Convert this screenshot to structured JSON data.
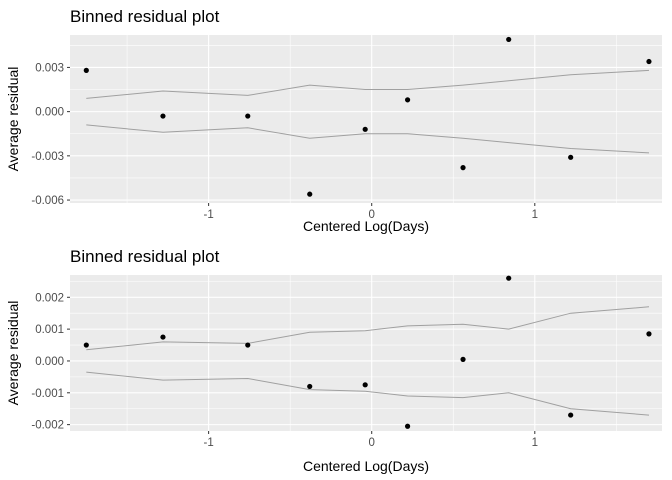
{
  "chart_data": [
    {
      "type": "scatter",
      "title": "Binned residual plot",
      "xlabel": "Centered Log(Days)",
      "ylabel": "Average residual",
      "xlim": [
        -1.85,
        1.78
      ],
      "ylim": [
        -0.0062,
        0.0052
      ],
      "x_ticks": [
        -1,
        0,
        1
      ],
      "x_tick_labels": [
        "-1",
        "0",
        "1"
      ],
      "y_ticks": [
        -0.006,
        -0.003,
        0.0,
        0.003
      ],
      "y_tick_labels": [
        "-0.006",
        "-0.003",
        "0.000",
        "0.003"
      ],
      "grid": true,
      "points": {
        "x": [
          -1.75,
          -1.28,
          -0.76,
          -0.38,
          -0.04,
          0.22,
          0.56,
          0.84,
          1.22,
          1.7
        ],
        "y": [
          0.0028,
          -0.0003,
          -0.0003,
          -0.0056,
          -0.0012,
          0.0008,
          -0.0038,
          0.0049,
          -0.0031,
          0.0034
        ]
      },
      "series": [
        {
          "role": "upper-band",
          "x": [
            -1.75,
            -1.28,
            -0.76,
            -0.38,
            -0.04,
            0.22,
            0.56,
            0.84,
            1.22,
            1.7
          ],
          "y": [
            0.0009,
            0.0014,
            0.0011,
            0.0018,
            0.0015,
            0.0015,
            0.0018,
            0.0021,
            0.0025,
            0.0028
          ]
        },
        {
          "role": "lower-band",
          "x": [
            -1.75,
            -1.28,
            -0.76,
            -0.38,
            -0.04,
            0.22,
            0.56,
            0.84,
            1.22,
            1.7
          ],
          "y": [
            -0.0009,
            -0.0014,
            -0.0011,
            -0.0018,
            -0.0015,
            -0.0015,
            -0.0018,
            -0.0021,
            -0.0025,
            -0.0028
          ]
        }
      ]
    },
    {
      "type": "scatter",
      "title": "Binned residual plot",
      "xlabel": "Centered Log(Days)",
      "ylabel": "Average residual",
      "xlim": [
        -1.85,
        1.78
      ],
      "ylim": [
        -0.0022,
        0.0027
      ],
      "x_ticks": [
        -1,
        0,
        1
      ],
      "x_tick_labels": [
        "-1",
        "0",
        "1"
      ],
      "y_ticks": [
        -0.002,
        -0.001,
        0.0,
        0.001,
        0.002
      ],
      "y_tick_labels": [
        "-0.002",
        "-0.001",
        "0.000",
        "0.001",
        "0.002"
      ],
      "grid": true,
      "points": {
        "x": [
          -1.75,
          -1.28,
          -0.76,
          -0.38,
          -0.04,
          0.22,
          0.56,
          0.84,
          1.22,
          1.7
        ],
        "y": [
          0.0005,
          0.00075,
          0.0005,
          -0.0008,
          -0.00075,
          -0.00205,
          5e-05,
          0.0026,
          -0.0017,
          0.00085
        ]
      },
      "series": [
        {
          "role": "upper-band",
          "x": [
            -1.75,
            -1.28,
            -0.76,
            -0.38,
            -0.04,
            0.22,
            0.56,
            0.84,
            1.22,
            1.7
          ],
          "y": [
            0.00035,
            0.0006,
            0.00055,
            0.0009,
            0.00095,
            0.0011,
            0.00115,
            0.001,
            0.0015,
            0.0017
          ]
        },
        {
          "role": "lower-band",
          "x": [
            -1.75,
            -1.28,
            -0.76,
            -0.38,
            -0.04,
            0.22,
            0.56,
            0.84,
            1.22,
            1.7
          ],
          "y": [
            -0.00035,
            -0.0006,
            -0.00055,
            -0.0009,
            -0.00095,
            -0.0011,
            -0.00115,
            -0.001,
            -0.0015,
            -0.0017
          ]
        }
      ]
    }
  ]
}
